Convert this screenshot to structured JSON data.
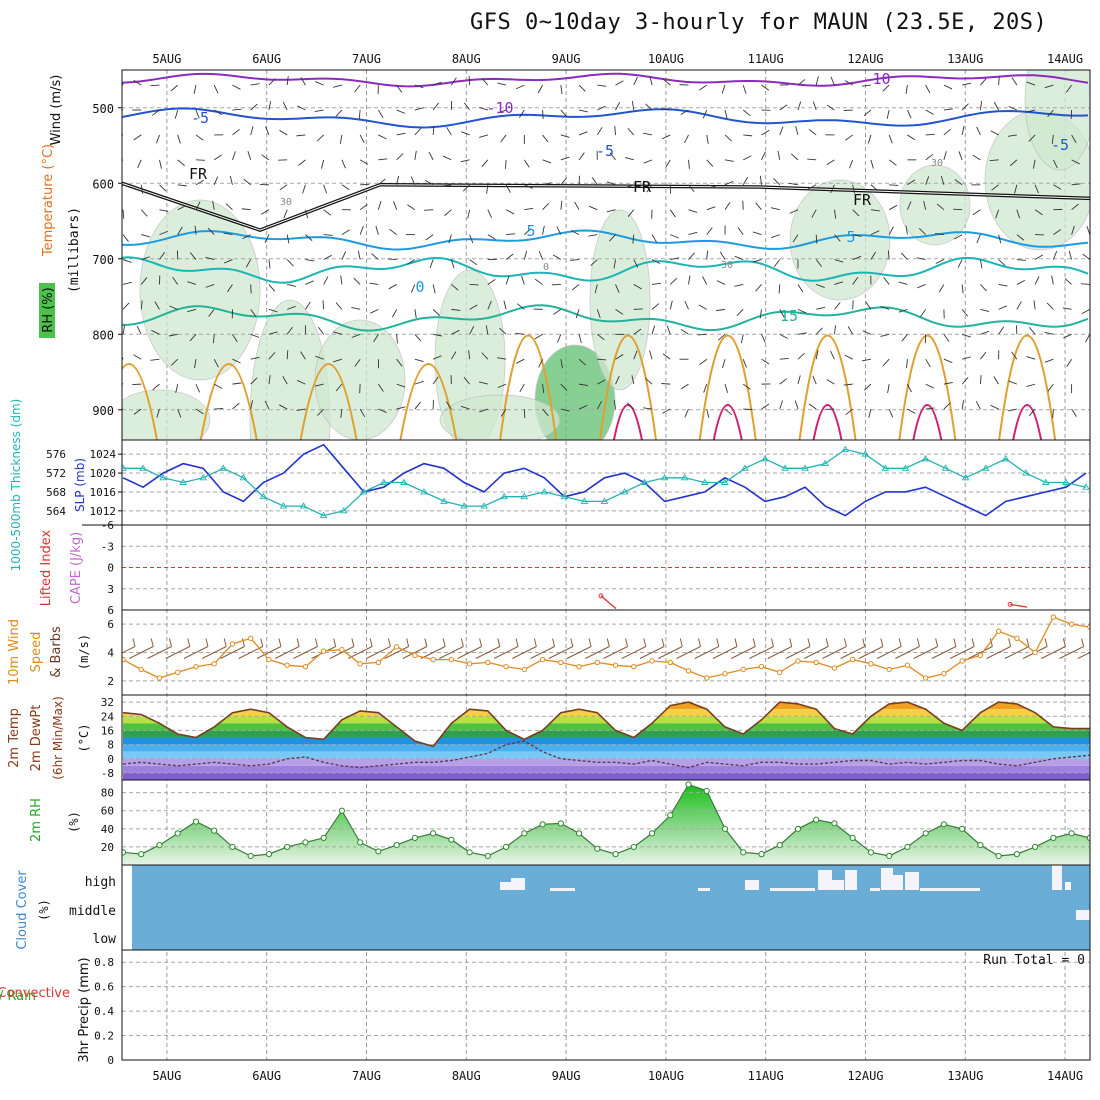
{
  "title": "GFS 0~10day 3-hourly for MAUN (23.5E, 20S)",
  "chart_data": {
    "type": "meteogram",
    "days": [
      "5AUG",
      "6AUG",
      "7AUG",
      "8AUG",
      "9AUG",
      "10AUG",
      "11AUG",
      "12AUG",
      "13AUG",
      "14AUG"
    ],
    "day_start": 4.55,
    "day_end": 14.25,
    "panels": [
      {
        "id": "upper-air",
        "type": "contour",
        "ylabel_parts": [
          "Wind (m/s)",
          "Temperature (°C)",
          "RH (%)"
        ],
        "yunit": "(millibars)",
        "ylim": [
          940,
          450
        ],
        "yticks": [
          500,
          600,
          700,
          800,
          900
        ],
        "contour_labels": [
          "-10",
          "-10",
          "-5",
          "-5",
          "FR",
          "FR",
          "FR",
          "-5",
          "5",
          "5",
          "0",
          "15",
          "30",
          "30",
          "30",
          "0"
        ],
        "freezing_level_mb": [
          600,
          662,
          602,
          605,
          620
        ]
      },
      {
        "id": "slp-thickness",
        "type": "line",
        "ylabel_left": "1000-500mb Thickness (dm)",
        "ylabel_right": "SLP (mb)",
        "left_ticks": [
          564,
          568,
          572,
          576
        ],
        "right_ticks": [
          1012,
          1016,
          1020,
          1024
        ],
        "ylim": [
          1009,
          1027
        ],
        "series": [
          {
            "name": "SLP",
            "color": "#2233cc",
            "values": [
              1019,
              1017,
              1020,
              1022,
              1021,
              1016,
              1014,
              1018,
              1020,
              1024,
              1026,
              1021,
              1016,
              1017,
              1020,
              1022,
              1021,
              1018,
              1016,
              1020,
              1021,
              1019,
              1015,
              1016,
              1019,
              1020,
              1018,
              1014,
              1015,
              1016,
              1019,
              1017,
              1014,
              1015,
              1017,
              1013,
              1011,
              1014,
              1016,
              1016,
              1017,
              1015,
              1013,
              1011,
              1014,
              1015,
              1016,
              1017,
              1020
            ]
          },
          {
            "name": "Thickness",
            "color": "#22b3b3",
            "values": [
              1021,
              1021,
              1019,
              1018,
              1019,
              1021,
              1019,
              1015,
              1013,
              1013,
              1011,
              1012,
              1016,
              1018,
              1018,
              1016,
              1014,
              1013,
              1013,
              1015,
              1015,
              1016,
              1015,
              1014,
              1014,
              1016,
              1018,
              1019,
              1019,
              1018,
              1018,
              1021,
              1023,
              1021,
              1021,
              1022,
              1025,
              1024,
              1021,
              1021,
              1023,
              1021,
              1019,
              1021,
              1023,
              1020,
              1018,
              1018,
              1017
            ]
          }
        ]
      },
      {
        "id": "cape-li",
        "type": "line",
        "ylabel_parts": [
          "Lifted Index",
          "CAPE (J/kg)"
        ],
        "yticks": [
          "-6",
          "-3",
          "0",
          "3",
          "6"
        ],
        "ylim": [
          -6,
          6
        ],
        "series": [
          {
            "name": "Lifted Index",
            "color": "#dd3333",
            "points": [
              [
                9.35,
                4.0
              ],
              [
                9.5,
                5.8
              ],
              [
                13.45,
                5.2
              ],
              [
                13.62,
                5.6
              ]
            ]
          }
        ],
        "reference_line": 0
      },
      {
        "id": "wind10m",
        "type": "line",
        "ylabel_parts": [
          "10m Wind",
          "Speed",
          "& Barbs"
        ],
        "yunit": "(m/s)",
        "yticks": [
          2,
          4,
          6
        ],
        "ylim": [
          1.0,
          7.0
        ],
        "series": [
          {
            "name": "Speed",
            "color": "#e08a20",
            "values": [
              3.5,
              2.8,
              2.2,
              2.6,
              3.0,
              3.2,
              4.6,
              5.0,
              3.5,
              3.1,
              3.0,
              4.1,
              4.2,
              3.2,
              3.3,
              4.4,
              3.8,
              3.5,
              3.5,
              3.2,
              3.3,
              3.0,
              2.8,
              3.5,
              3.3,
              3.0,
              3.3,
              3.1,
              3.0,
              3.4,
              3.3,
              2.7,
              2.2,
              2.5,
              2.8,
              3.0,
              2.6,
              3.4,
              3.3,
              2.9,
              3.5,
              3.2,
              2.8,
              3.1,
              2.2,
              2.5,
              3.4,
              3.8,
              5.5,
              5.0,
              4.0,
              6.5,
              6.0,
              5.8
            ]
          }
        ]
      },
      {
        "id": "temp2m",
        "type": "area",
        "ylabel_parts": [
          "2m Temp",
          "2m DewPt",
          "(6hr Min/Max)"
        ],
        "yunit": "(°C)",
        "yticks": [
          -8,
          0,
          8,
          16,
          24,
          32
        ],
        "ylim": [
          -12,
          36
        ],
        "series": [
          {
            "name": "2m Temp",
            "color": "#7a3d1e",
            "values": [
              26,
              25,
              20,
              14,
              12,
              18,
              26,
              28,
              26,
              18,
              12,
              11,
              22,
              27,
              26,
              18,
              10,
              7,
              20,
              28,
              27,
              16,
              11,
              16,
              26,
              28,
              26,
              16,
              12,
              20,
              30,
              32,
              28,
              18,
              14,
              22,
              32,
              31,
              28,
              17,
              14,
              24,
              31,
              32,
              28,
              20,
              16,
              26,
              32,
              31,
              26,
              18,
              17,
              17
            ]
          },
          {
            "name": "2m DewPt",
            "color": "#5a3d55",
            "values": [
              -3,
              -2,
              -3,
              -4,
              -3,
              -2,
              -3,
              -4,
              -3,
              0,
              1,
              -2,
              -4,
              -5,
              -4,
              -3,
              -2,
              -2,
              -1,
              1,
              3,
              8,
              10,
              4,
              0,
              -1,
              -2,
              -2,
              -3,
              -1,
              -3,
              -5,
              -2,
              -3,
              -4,
              -2,
              -2,
              -3,
              -3,
              -2,
              -1,
              -1,
              -3,
              -2,
              -3,
              -2,
              -1,
              -1,
              -3,
              -4,
              -2,
              0,
              1,
              2
            ]
          }
        ]
      },
      {
        "id": "rh2m",
        "type": "area",
        "ylabel": "2m RH",
        "yunit": "(%)",
        "yticks": [
          20,
          40,
          60,
          80
        ],
        "ylim": [
          0,
          94
        ],
        "series": [
          {
            "name": "2m RH",
            "color": "#119911",
            "values": [
              14,
              12,
              22,
              35,
              48,
              38,
              20,
              10,
              12,
              20,
              25,
              30,
              60,
              25,
              15,
              22,
              30,
              35,
              28,
              14,
              10,
              20,
              35,
              45,
              46,
              35,
              18,
              12,
              20,
              35,
              55,
              89,
              82,
              40,
              14,
              12,
              22,
              40,
              50,
              46,
              30,
              14,
              10,
              20,
              35,
              45,
              40,
              22,
              10,
              12,
              20,
              30,
              35,
              30
            ]
          }
        ]
      },
      {
        "id": "cloud",
        "type": "heatmap",
        "ylabel_parts": [
          "Cloud Cover",
          "(%)"
        ],
        "levels": [
          "high",
          "middle",
          "low"
        ]
      },
      {
        "id": "precip",
        "type": "bar",
        "ylabel_parts": [
          "Total / Rain",
          "Convective",
          "3hr Precip (mm)"
        ],
        "yticks": [
          "0",
          "0.2",
          "0.4",
          "0.6",
          "0.8"
        ],
        "ylim": [
          0,
          0.9
        ],
        "values": [],
        "run_total": "Run Total = 0"
      }
    ]
  }
}
